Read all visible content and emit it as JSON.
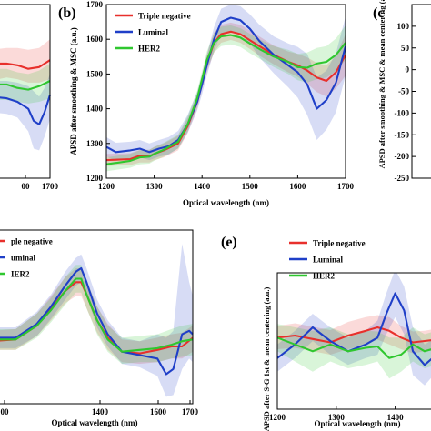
{
  "series_colors": {
    "Triple negative": "#e8302c",
    "Luminal": "#1f3fc8",
    "HER2": "#2fc72f"
  },
  "chart_data": [
    {
      "id": "a",
      "type": "line",
      "panel_label": "",
      "ylabel": "",
      "xlabel": "",
      "xlim": [
        1155,
        1700
      ],
      "ylim": [
        0,
        1
      ],
      "xticks": [
        1700
      ],
      "xtick_labels": [
        "1700"
      ],
      "xtick_display": [
        "00",
        "1700"
      ],
      "yticks": [],
      "legend": false,
      "series": [
        {
          "name": "Triple negative",
          "x": [
            1155,
            1300,
            1400,
            1500,
            1600,
            1700
          ],
          "y": [
            0.66,
            0.66,
            0.65,
            0.63,
            0.64,
            0.68
          ],
          "lo": [
            0.56,
            0.58,
            0.57,
            0.55,
            0.55,
            0.57
          ],
          "hi": [
            0.74,
            0.75,
            0.75,
            0.74,
            0.75,
            0.8
          ]
        },
        {
          "name": "Luminal",
          "x": [
            1155,
            1300,
            1400,
            1500,
            1550,
            1600,
            1650,
            1700
          ],
          "y": [
            0.47,
            0.46,
            0.44,
            0.4,
            0.33,
            0.31,
            0.38,
            0.48
          ],
          "lo": [
            0.38,
            0.37,
            0.35,
            0.27,
            0.17,
            0.16,
            0.24,
            0.34
          ],
          "hi": [
            0.56,
            0.56,
            0.55,
            0.53,
            0.5,
            0.47,
            0.52,
            0.6
          ]
        },
        {
          "name": "HER2",
          "x": [
            1155,
            1300,
            1400,
            1500,
            1600,
            1700
          ],
          "y": [
            0.54,
            0.54,
            0.52,
            0.51,
            0.53,
            0.56
          ],
          "lo": [
            0.45,
            0.45,
            0.44,
            0.43,
            0.44,
            0.46
          ],
          "hi": [
            0.63,
            0.63,
            0.61,
            0.6,
            0.62,
            0.66
          ]
        }
      ]
    },
    {
      "id": "b",
      "type": "line",
      "panel_label": "(b)",
      "ylabel": "APSD after smoothing & MSC (a.u.)",
      "xlabel": "Optical wavelength (nm)",
      "xlim": [
        1200,
        1700
      ],
      "ylim": [
        1200,
        1700
      ],
      "xticks": [
        1200,
        1300,
        1400,
        1500,
        1600,
        1700
      ],
      "yticks": [
        1200,
        1300,
        1400,
        1500,
        1600,
        1700
      ],
      "legend": true,
      "legend_position": "top-left",
      "series": [
        {
          "name": "Triple negative",
          "x": [
            1200,
            1250,
            1270,
            1290,
            1300,
            1320,
            1350,
            1370,
            1390,
            1400,
            1410,
            1425,
            1440,
            1460,
            1480,
            1500,
            1520,
            1550,
            1580,
            1600,
            1620,
            1640,
            1660,
            1680,
            1700
          ],
          "y": [
            1252,
            1255,
            1265,
            1263,
            1270,
            1280,
            1300,
            1350,
            1420,
            1475,
            1530,
            1590,
            1615,
            1622,
            1615,
            1597,
            1580,
            1555,
            1535,
            1525,
            1510,
            1490,
            1480,
            1505,
            1555
          ],
          "lo": [
            1235,
            1238,
            1245,
            1245,
            1252,
            1260,
            1280,
            1330,
            1400,
            1455,
            1505,
            1562,
            1590,
            1598,
            1590,
            1572,
            1553,
            1528,
            1505,
            1492,
            1472,
            1448,
            1435,
            1458,
            1495
          ],
          "hi": [
            1270,
            1272,
            1282,
            1282,
            1290,
            1300,
            1322,
            1372,
            1442,
            1498,
            1555,
            1620,
            1642,
            1648,
            1642,
            1625,
            1608,
            1582,
            1565,
            1558,
            1548,
            1532,
            1525,
            1552,
            1615
          ]
        },
        {
          "name": "Luminal",
          "x": [
            1200,
            1220,
            1250,
            1270,
            1290,
            1310,
            1330,
            1350,
            1370,
            1390,
            1400,
            1410,
            1425,
            1440,
            1460,
            1480,
            1500,
            1520,
            1550,
            1580,
            1600,
            1620,
            1640,
            1660,
            1680,
            1700
          ],
          "y": [
            1290,
            1275,
            1280,
            1285,
            1275,
            1285,
            1292,
            1310,
            1355,
            1420,
            1470,
            1525,
            1600,
            1650,
            1662,
            1655,
            1630,
            1595,
            1555,
            1525,
            1505,
            1470,
            1400,
            1425,
            1475,
            1580
          ],
          "lo": [
            1262,
            1250,
            1255,
            1260,
            1252,
            1262,
            1268,
            1286,
            1330,
            1395,
            1442,
            1495,
            1567,
            1615,
            1625,
            1615,
            1588,
            1548,
            1502,
            1462,
            1432,
            1382,
            1310,
            1340,
            1390,
            1495
          ],
          "hi": [
            1318,
            1302,
            1305,
            1310,
            1300,
            1310,
            1318,
            1336,
            1382,
            1448,
            1498,
            1555,
            1635,
            1688,
            1700,
            1695,
            1672,
            1642,
            1608,
            1588,
            1578,
            1558,
            1490,
            1510,
            1560,
            1665
          ]
        },
        {
          "name": "HER2",
          "x": [
            1200,
            1250,
            1270,
            1290,
            1300,
            1320,
            1350,
            1370,
            1390,
            1400,
            1410,
            1425,
            1440,
            1460,
            1480,
            1500,
            1520,
            1550,
            1580,
            1600,
            1620,
            1640,
            1660,
            1680,
            1700
          ],
          "y": [
            1240,
            1250,
            1260,
            1262,
            1270,
            1282,
            1305,
            1355,
            1430,
            1485,
            1540,
            1590,
            1608,
            1612,
            1605,
            1588,
            1572,
            1550,
            1535,
            1520,
            1518,
            1530,
            1535,
            1555,
            1590
          ],
          "lo": [
            1220,
            1230,
            1240,
            1242,
            1250,
            1262,
            1285,
            1335,
            1408,
            1462,
            1515,
            1562,
            1580,
            1585,
            1578,
            1560,
            1544,
            1520,
            1500,
            1482,
            1475,
            1485,
            1490,
            1508,
            1540
          ],
          "hi": [
            1260,
            1270,
            1280,
            1282,
            1290,
            1302,
            1325,
            1378,
            1452,
            1508,
            1565,
            1618,
            1636,
            1640,
            1632,
            1616,
            1600,
            1580,
            1570,
            1558,
            1562,
            1575,
            1580,
            1602,
            1640
          ]
        }
      ]
    },
    {
      "id": "c",
      "type": "line",
      "panel_label": "(c",
      "ylabel": "APSD after smoothing & MSC & mean centering (a.u.)",
      "xlabel": "",
      "xlim": [
        1200,
        1700
      ],
      "ylim": [
        -250,
        150
      ],
      "yticks": [
        100,
        50,
        0,
        -50,
        -100,
        -150,
        -200,
        -250
      ],
      "ytick_labels": [
        "100",
        "50",
        "0",
        "-50",
        "-100",
        "-150",
        "-200",
        "-250"
      ],
      "legend": false,
      "series": []
    },
    {
      "id": "d",
      "type": "line",
      "panel_label": "",
      "ylabel": "",
      "xlabel": "Optical wavelength (nm)",
      "xlim": [
        1130,
        1700
      ],
      "ylim": [
        0,
        1
      ],
      "xticks": [
        1400,
        1600,
        1700
      ],
      "xtick_labels": [
        "1400",
        "1600",
        "1700"
      ],
      "xtick_display": [
        "00",
        "1400",
        "1600",
        "1700"
      ],
      "legend": true,
      "legend_labels": [
        "ple negative",
        "uminal",
        "IER2"
      ],
      "series": [
        {
          "name": "Triple negative",
          "x": [
            1130,
            1200,
            1260,
            1300,
            1340,
            1370,
            1385,
            1400,
            1430,
            1460,
            1500,
            1550,
            1600,
            1640,
            1670,
            1700
          ],
          "y": [
            0.36,
            0.37,
            0.45,
            0.55,
            0.65,
            0.7,
            0.7,
            0.63,
            0.48,
            0.38,
            0.3,
            0.29,
            0.31,
            0.33,
            0.33,
            0.38
          ],
          "lo": [
            0.31,
            0.31,
            0.39,
            0.48,
            0.58,
            0.62,
            0.62,
            0.55,
            0.41,
            0.31,
            0.24,
            0.23,
            0.24,
            0.26,
            0.26,
            0.3
          ],
          "hi": [
            0.42,
            0.43,
            0.52,
            0.62,
            0.73,
            0.78,
            0.78,
            0.71,
            0.56,
            0.46,
            0.37,
            0.36,
            0.38,
            0.4,
            0.41,
            0.45
          ]
        },
        {
          "name": "Luminal",
          "x": [
            1130,
            1200,
            1260,
            1300,
            1340,
            1370,
            1385,
            1400,
            1430,
            1460,
            1500,
            1550,
            1600,
            1625,
            1645,
            1670,
            1690,
            1700
          ],
          "y": [
            0.38,
            0.38,
            0.46,
            0.56,
            0.68,
            0.76,
            0.78,
            0.7,
            0.52,
            0.4,
            0.3,
            0.28,
            0.26,
            0.17,
            0.2,
            0.4,
            0.42,
            0.4
          ],
          "lo": [
            0.32,
            0.32,
            0.39,
            0.49,
            0.6,
            0.68,
            0.7,
            0.62,
            0.44,
            0.33,
            0.23,
            0.21,
            0.16,
            0.04,
            0.05,
            0.2,
            0.26,
            0.24
          ],
          "hi": [
            0.44,
            0.44,
            0.53,
            0.63,
            0.76,
            0.84,
            0.86,
            0.78,
            0.6,
            0.48,
            0.38,
            0.36,
            0.4,
            0.38,
            0.42,
            0.92,
            0.7,
            0.62
          ]
        },
        {
          "name": "HER2",
          "x": [
            1130,
            1200,
            1260,
            1300,
            1340,
            1370,
            1385,
            1400,
            1430,
            1460,
            1500,
            1550,
            1600,
            1640,
            1670,
            1700
          ],
          "y": [
            0.37,
            0.37,
            0.45,
            0.54,
            0.65,
            0.72,
            0.72,
            0.63,
            0.48,
            0.37,
            0.3,
            0.31,
            0.32,
            0.34,
            0.36,
            0.37
          ],
          "lo": [
            0.31,
            0.31,
            0.38,
            0.47,
            0.57,
            0.64,
            0.64,
            0.55,
            0.4,
            0.3,
            0.23,
            0.24,
            0.24,
            0.26,
            0.27,
            0.28
          ],
          "hi": [
            0.43,
            0.43,
            0.52,
            0.61,
            0.73,
            0.8,
            0.8,
            0.71,
            0.56,
            0.45,
            0.38,
            0.39,
            0.4,
            0.43,
            0.45,
            0.46
          ]
        }
      ]
    },
    {
      "id": "e",
      "type": "line",
      "panel_label": "(e)",
      "ylabel": "APSD after S-G 1st & mean centering (a.u.)",
      "xlabel": "Optical wavelength (nm)",
      "xlim": [
        1200,
        1470
      ],
      "ylim": [
        -1,
        1
      ],
      "xticks": [
        1200,
        1300,
        1400
      ],
      "legend": true,
      "legend_position": "top-left",
      "series": [
        {
          "name": "Triple negative",
          "x": [
            1200,
            1230,
            1260,
            1290,
            1320,
            1350,
            1370,
            1390,
            1410,
            1430,
            1450,
            1470
          ],
          "y": [
            0.05,
            0.08,
            0.03,
            -0.02,
            0.08,
            0.15,
            0.2,
            0.15,
            0.05,
            -0.02,
            0.0,
            0.02
          ],
          "lo": [
            -0.12,
            -0.1,
            -0.15,
            -0.2,
            -0.12,
            -0.05,
            0.02,
            -0.05,
            -0.12,
            -0.18,
            -0.15,
            -0.14
          ],
          "hi": [
            0.22,
            0.26,
            0.21,
            0.16,
            0.28,
            0.35,
            0.38,
            0.35,
            0.22,
            0.14,
            0.15,
            0.18
          ]
        },
        {
          "name": "Luminal",
          "x": [
            1200,
            1230,
            1260,
            1290,
            1320,
            1350,
            1370,
            1385,
            1400,
            1415,
            1430,
            1450,
            1470
          ],
          "y": [
            -0.25,
            -0.05,
            0.2,
            0.0,
            -0.15,
            -0.05,
            0.05,
            0.4,
            0.7,
            0.45,
            -0.15,
            -0.35,
            -0.2
          ],
          "lo": [
            -0.45,
            -0.25,
            0.0,
            -0.2,
            -0.35,
            -0.25,
            -0.2,
            0.1,
            0.35,
            0.1,
            -0.5,
            -0.65,
            -0.45
          ],
          "hi": [
            -0.05,
            0.15,
            0.4,
            0.2,
            0.05,
            0.15,
            0.3,
            0.7,
            1.05,
            0.8,
            0.2,
            -0.05,
            0.05
          ]
        },
        {
          "name": "HER2",
          "x": [
            1200,
            1230,
            1260,
            1290,
            1320,
            1350,
            1370,
            1390,
            1410,
            1430,
            1450,
            1470
          ],
          "y": [
            0.05,
            -0.05,
            -0.15,
            -0.05,
            -0.15,
            -0.1,
            -0.08,
            -0.25,
            -0.2,
            -0.05,
            -0.15,
            -0.1
          ],
          "lo": [
            -0.15,
            -0.3,
            -0.45,
            -0.3,
            -0.4,
            -0.35,
            -0.3,
            -0.55,
            -0.45,
            -0.3,
            -0.4,
            -0.35
          ],
          "hi": [
            0.25,
            0.2,
            0.15,
            0.2,
            0.1,
            0.15,
            0.14,
            0.05,
            0.05,
            0.2,
            0.1,
            0.15
          ]
        }
      ]
    }
  ]
}
